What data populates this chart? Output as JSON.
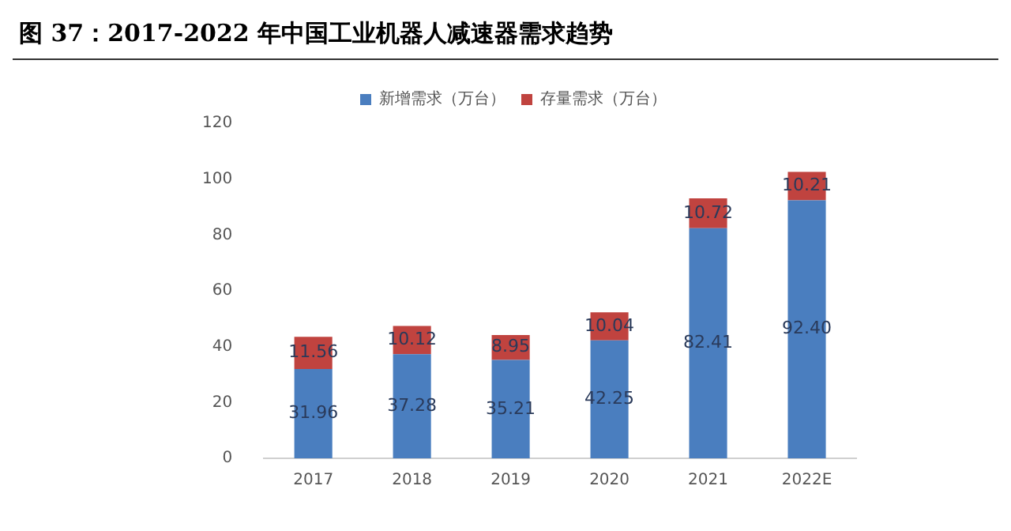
{
  "chart_data": {
    "type": "bar",
    "title": "图 37：2017-2022 年中国工业机器人减速器需求趋势",
    "stacked": true,
    "legend": "top",
    "grid": false,
    "categories": [
      "2017",
      "2018",
      "2019",
      "2020",
      "2021",
      "2022E"
    ],
    "ylim": [
      0,
      120
    ],
    "yticks": [
      0,
      20,
      40,
      60,
      80,
      100,
      120
    ],
    "series": [
      {
        "name": "新增需求（万台）",
        "color": "#4a7ebf",
        "values": [
          31.96,
          37.28,
          35.21,
          42.25,
          82.41,
          92.4
        ],
        "value_labels": [
          "31.96",
          "37.28",
          "35.21",
          "42.25",
          "82.41",
          "92.40"
        ]
      },
      {
        "name": "存量需求（万台）",
        "color": "#c0433f",
        "values": [
          11.56,
          10.12,
          8.95,
          10.04,
          10.72,
          10.21
        ],
        "value_labels": [
          "11.56",
          "10.12",
          "8.95",
          "10.04",
          "10.72",
          "10.21"
        ]
      }
    ]
  }
}
